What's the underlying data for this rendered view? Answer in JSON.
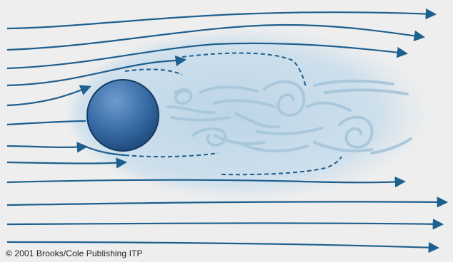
{
  "figure": {
    "copyright": "© 2001 Brooks/Cole Publishing ITP"
  },
  "colors": {
    "background": "#eeeeee",
    "streamline": "#1d5f8e",
    "wake": "#c6dbe8",
    "eddy": "#a9c8dc",
    "cylinder_dark": "#1e4f86",
    "cylinder_light": "#5f8fc3"
  }
}
